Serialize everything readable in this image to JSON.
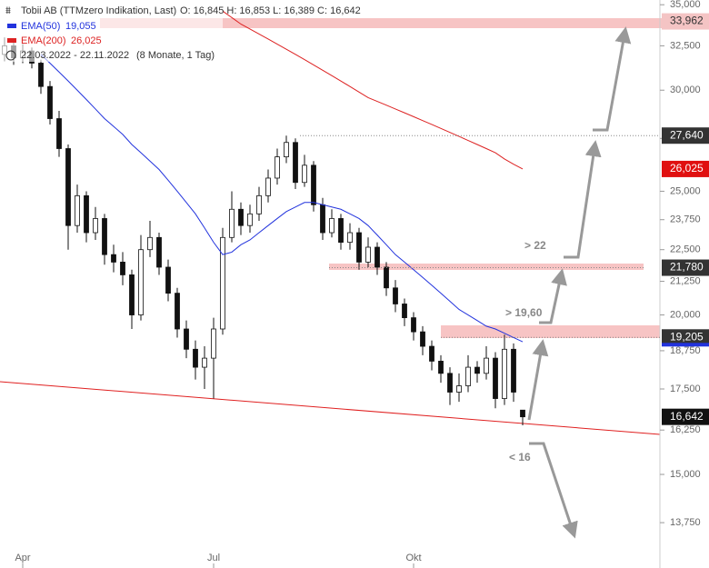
{
  "chart_data": {
    "type": "candlestick",
    "title": "Tobii AB (TTMzero Indikation, Last)",
    "ohlc_label": "O: 16,845   H: 16,853   L: 16,389   C: 16,642",
    "date_range": "22.03.2022 - 22.11.2022",
    "period": "(8 Monate, 1 Tag)",
    "log_scale": true,
    "ylim": [
      13200,
      35300
    ],
    "yticks": [
      {
        "value": 35000,
        "label": "35,000"
      },
      {
        "value": 32500,
        "label": "32,500"
      },
      {
        "value": 30000,
        "label": "30,000"
      },
      {
        "value": 27500,
        "label": "27,500"
      },
      {
        "value": 25000,
        "label": "25,000"
      },
      {
        "value": 23750,
        "label": "23,750"
      },
      {
        "value": 22500,
        "label": "22,500"
      },
      {
        "value": 21250,
        "label": "21,250"
      },
      {
        "value": 20000,
        "label": "20,000"
      },
      {
        "value": 18750,
        "label": "18,750"
      },
      {
        "value": 17500,
        "label": "17,500"
      },
      {
        "value": 16250,
        "label": "16,250"
      },
      {
        "value": 15000,
        "label": "15,000"
      },
      {
        "value": 13750,
        "label": "13,750"
      }
    ],
    "categories": [
      null,
      null,
      "Apr",
      null,
      null,
      null,
      null,
      null,
      null,
      null,
      null,
      null,
      null,
      null,
      null,
      null,
      null,
      null,
      null,
      null,
      null,
      null,
      null,
      "Jul",
      null,
      null,
      null,
      null,
      null,
      null,
      null,
      null,
      null,
      null,
      null,
      null,
      null,
      null,
      null,
      null,
      null,
      null,
      null,
      null,
      null,
      "Okt",
      null,
      null,
      null,
      null,
      null,
      null,
      null,
      null,
      null,
      null,
      null,
      null
    ],
    "open": [
      32000,
      32500,
      31800,
      32200,
      31500,
      30200,
      28500,
      27000,
      23500,
      24800,
      23200,
      23800,
      22300,
      22000,
      21500,
      20000,
      22500,
      23000,
      21800,
      20800,
      19500,
      18800,
      18200,
      18500,
      19500,
      23000,
      24200,
      23500,
      24000,
      24800,
      25600,
      26600,
      27300,
      25400,
      26200,
      24400,
      23200,
      23800,
      22800,
      23200,
      22000,
      22600,
      21800,
      21000,
      20400,
      19900,
      19400,
      18900,
      18400,
      18000,
      17400,
      17600,
      18200,
      18000,
      18500,
      17200,
      18800,
      16845
    ],
    "high": [
      33000,
      32800,
      32600,
      32400,
      31700,
      30500,
      28900,
      27200,
      25300,
      25000,
      24300,
      24000,
      22700,
      22400,
      21700,
      23100,
      23700,
      23200,
      22100,
      21000,
      19800,
      19100,
      18900,
      19900,
      23400,
      25000,
      24500,
      24400,
      25200,
      26000,
      27000,
      27640,
      27500,
      26700,
      26400,
      24700,
      24200,
      24000,
      23600,
      23400,
      23000,
      22800,
      22000,
      21300,
      20600,
      20100,
      19600,
      19100,
      18600,
      18200,
      18000,
      18600,
      18400,
      18900,
      18700,
      19300,
      19000,
      16853
    ],
    "low": [
      31600,
      31400,
      31500,
      31200,
      29800,
      28200,
      26600,
      22500,
      23200,
      22800,
      22900,
      21900,
      21600,
      21100,
      19500,
      19800,
      22200,
      21500,
      20500,
      19200,
      18500,
      17800,
      17500,
      17200,
      19300,
      22800,
      23100,
      23200,
      23700,
      24500,
      25300,
      26300,
      25100,
      25200,
      24100,
      22900,
      23000,
      22500,
      22500,
      21700,
      21800,
      21500,
      20700,
      20100,
      19600,
      19100,
      18600,
      18100,
      17700,
      17000,
      17100,
      17400,
      17700,
      17800,
      16900,
      17000,
      17100,
      16389
    ],
    "close": [
      32500,
      31800,
      32200,
      31500,
      30200,
      28500,
      27000,
      23500,
      24800,
      23200,
      23800,
      22300,
      22000,
      21500,
      20000,
      22500,
      23000,
      21800,
      20800,
      19500,
      18800,
      18200,
      18500,
      19500,
      23000,
      24200,
      23500,
      24000,
      24800,
      25600,
      26600,
      27300,
      25400,
      26200,
      24400,
      23200,
      23800,
      22800,
      23200,
      22000,
      22600,
      21800,
      21000,
      20400,
      19900,
      19400,
      18900,
      18400,
      18000,
      17400,
      17600,
      18200,
      18000,
      18500,
      17200,
      18800,
      17400,
      16642
    ],
    "series": [
      {
        "name": "EMA(50)",
        "color": "#2233dd",
        "value_label": "19,055",
        "values": [
          null,
          null,
          null,
          null,
          32000,
          31500,
          31000,
          30500,
          30000,
          29500,
          29000,
          28500,
          28100,
          27700,
          27200,
          26800,
          26400,
          26000,
          25500,
          25000,
          24500,
          24000,
          23400,
          22800,
          22300,
          22400,
          22700,
          22900,
          23200,
          23500,
          23800,
          24100,
          24300,
          24500,
          24500,
          24400,
          24300,
          24200,
          24000,
          23800,
          23500,
          23100,
          22700,
          22300,
          22000,
          21700,
          21400,
          21100,
          20800,
          20500,
          20200,
          20000,
          19800,
          19600,
          19500,
          19350,
          19200,
          19055
        ]
      },
      {
        "name": "EMA(200)",
        "color": "#dd2222",
        "value_label": "26,025",
        "values": [
          null,
          null,
          null,
          null,
          null,
          null,
          null,
          null,
          null,
          null,
          null,
          null,
          null,
          null,
          null,
          null,
          null,
          null,
          null,
          null,
          null,
          null,
          null,
          null,
          34600,
          34200,
          33800,
          33500,
          33200,
          32900,
          32600,
          32300,
          32000,
          31700,
          31400,
          31100,
          30800,
          30500,
          30200,
          29900,
          29600,
          29400,
          29200,
          29000,
          28800,
          28600,
          28400,
          28200,
          28000,
          27800,
          27600,
          27400,
          27200,
          27000,
          26800,
          26500,
          26250,
          26025
        ]
      }
    ],
    "levels": [
      {
        "value": 33962,
        "label": "33,962",
        "color": "#f4c4c4"
      },
      {
        "value": 27640,
        "label": "27,640",
        "color": "#333333"
      },
      {
        "value": 26025,
        "label": "26,025",
        "color": "#e01010"
      },
      {
        "value": 21780,
        "label": "21,780",
        "color": "#333333"
      },
      {
        "value": 19205,
        "label": "19,205",
        "color": "#333333"
      },
      {
        "value": 16642,
        "label": "16,642",
        "color": "#111111"
      }
    ],
    "annotations": [
      "> 22",
      "> 19,60",
      "< 16"
    ]
  }
}
